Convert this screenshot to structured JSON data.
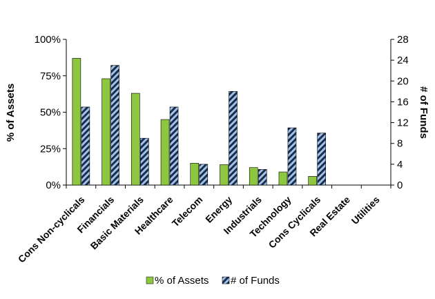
{
  "chart_data": {
    "type": "bar",
    "categories": [
      "Cons Non-cyclicals",
      "Financials",
      "Basic Materials",
      "Healthcare",
      "Telecom",
      "Energy",
      "Industrials",
      "Technology",
      "Cons Cyclicals",
      "Real Estate",
      "Utilities"
    ],
    "series": [
      {
        "name": "% of Assets",
        "axis": "left",
        "values": [
          87,
          73,
          63,
          45,
          15,
          14,
          12,
          9,
          6,
          0,
          0
        ]
      },
      {
        "name": "# of Funds",
        "axis": "right",
        "values": [
          15,
          23,
          9,
          15,
          4,
          18,
          3,
          11,
          10,
          0,
          0
        ]
      }
    ],
    "ylabel": "% of Assets",
    "y2label": "# of Funds",
    "ylim": [
      0,
      100
    ],
    "y2lim": [
      0,
      28
    ],
    "yticks": [
      "0%",
      "25%",
      "50%",
      "75%",
      "100%"
    ],
    "y2ticks": [
      "0",
      "4",
      "8",
      "12",
      "16",
      "20",
      "24",
      "28"
    ],
    "grid": false,
    "legend_position": "bottom",
    "colors": {
      "assets": "#8dc63f",
      "funds_stripe_a": "#1c2b4a",
      "funds_stripe_b": "#9fc3e8"
    }
  }
}
